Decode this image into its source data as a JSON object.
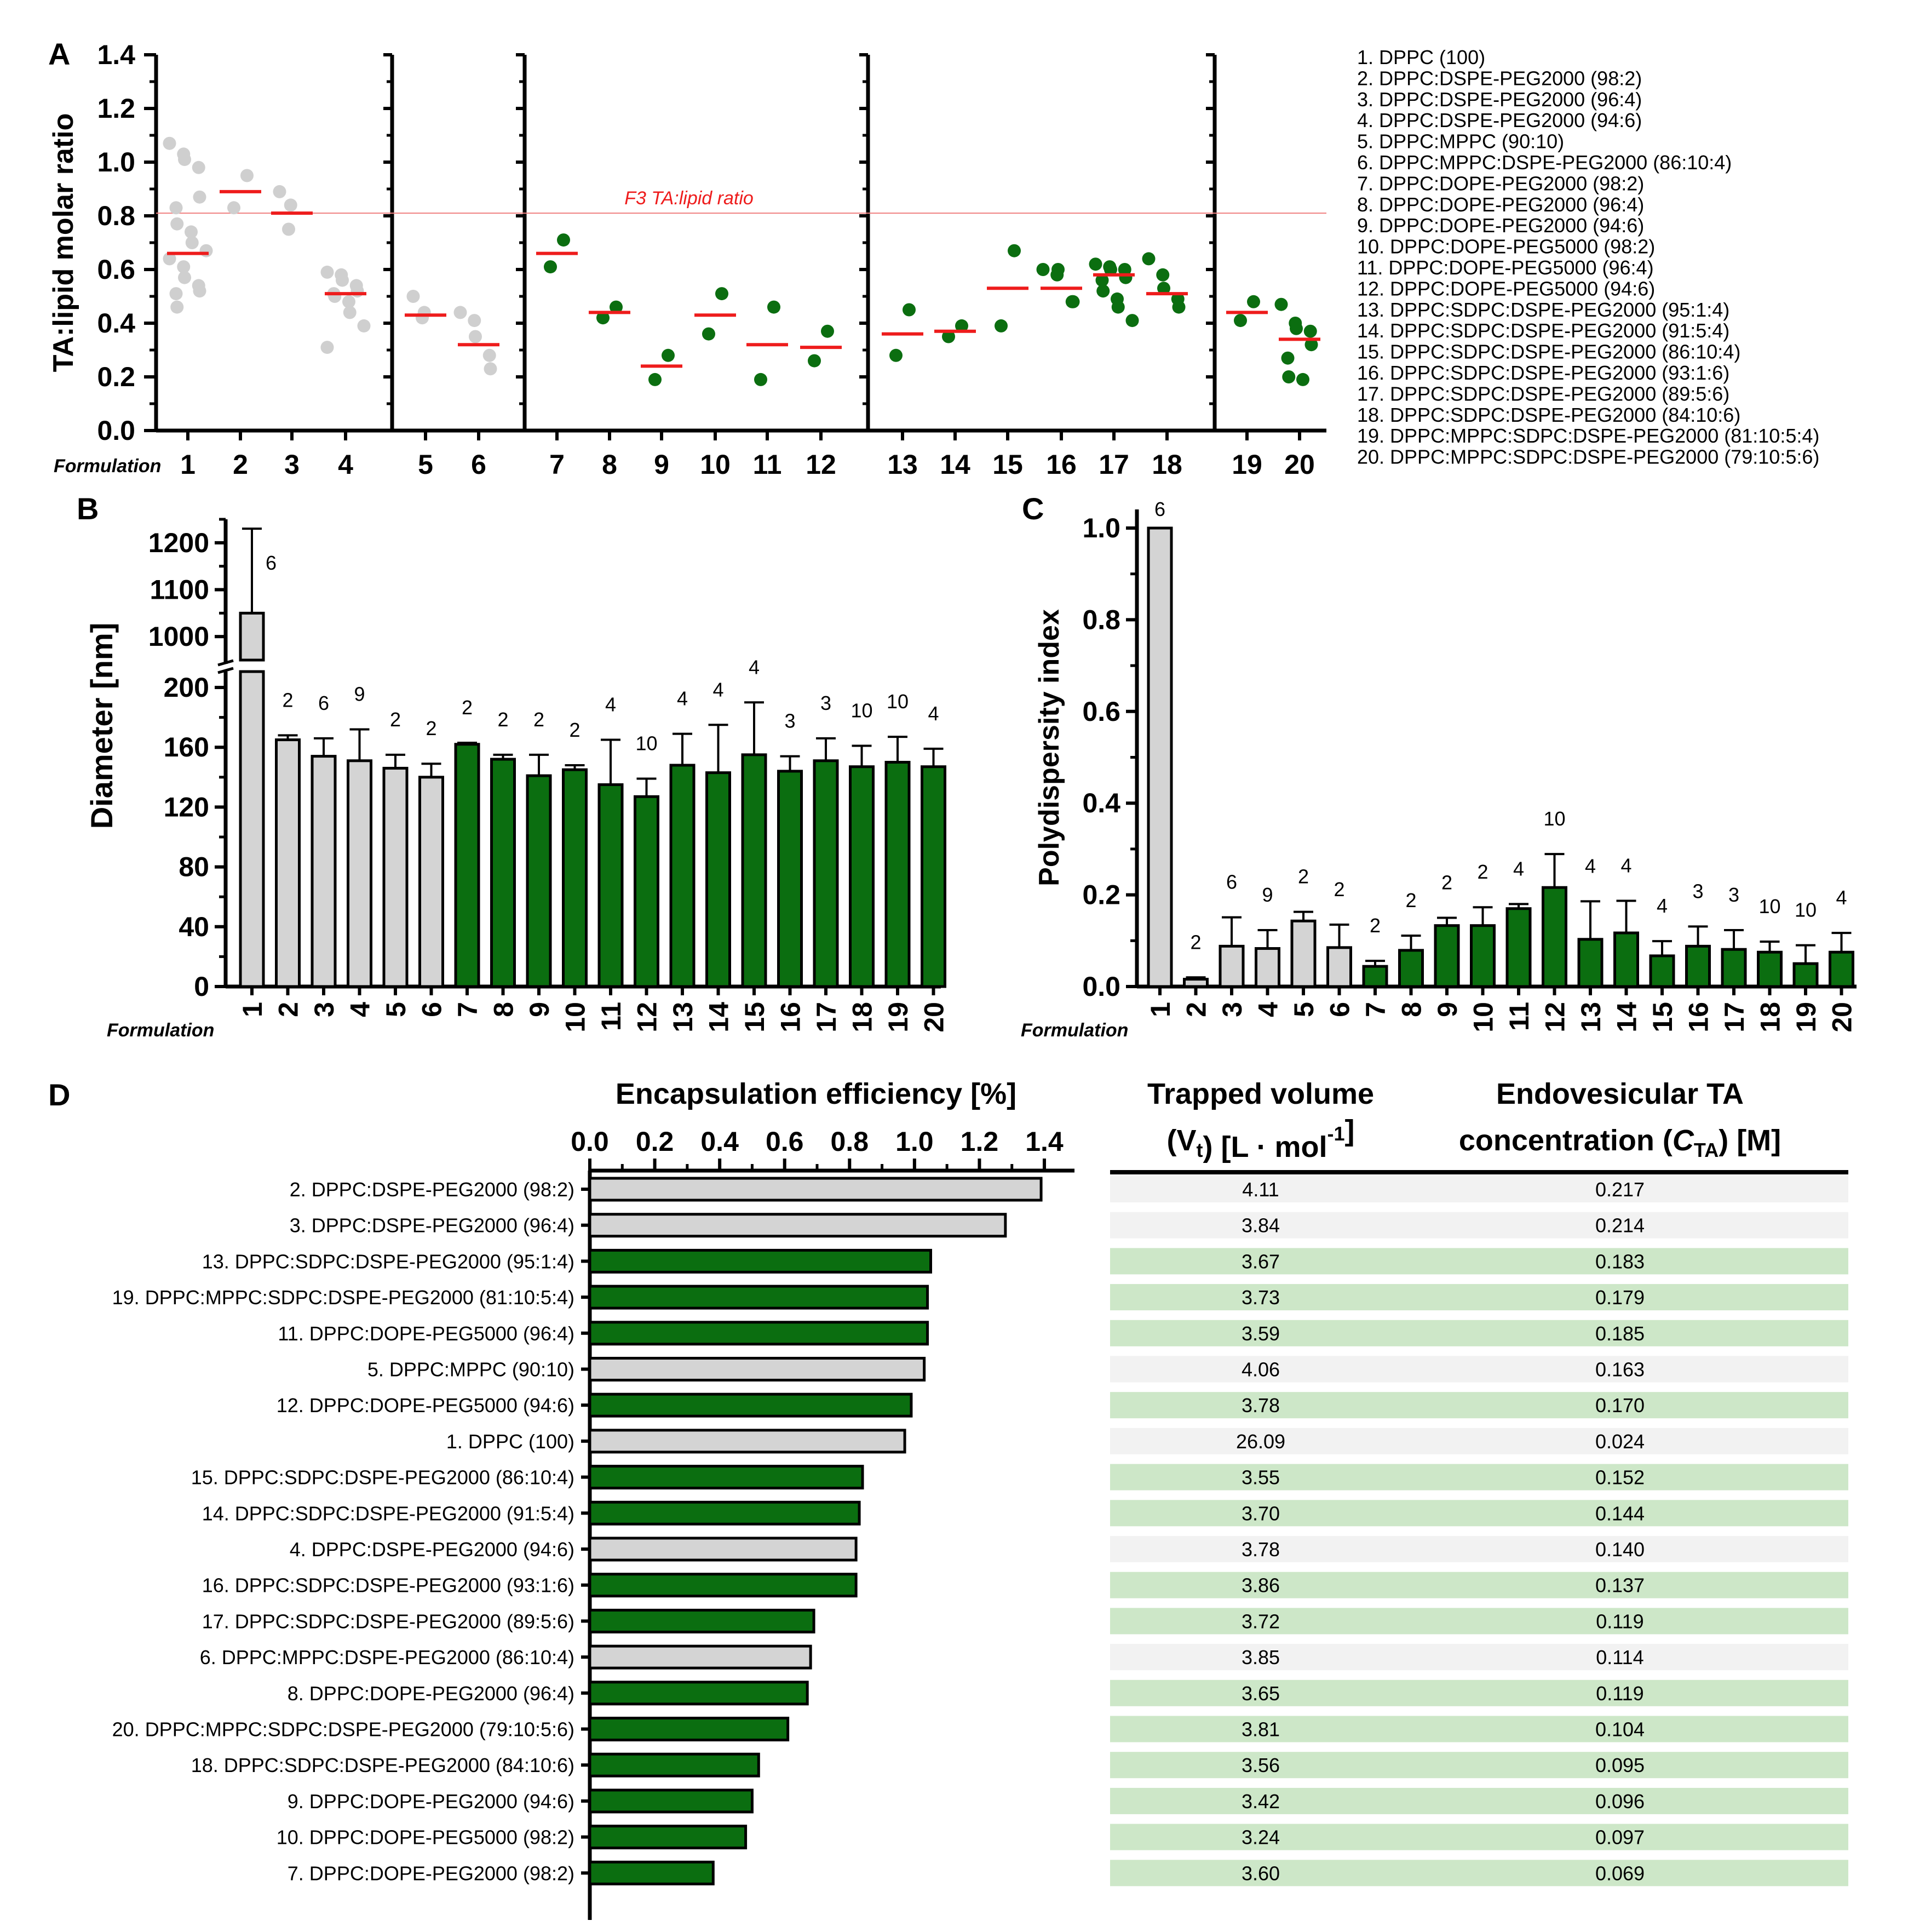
{
  "colors": {
    "gray_fill": "#d4d4d4",
    "gray_point": "#cfcfcf",
    "green": "#0b6e10",
    "red": "#ee1c1c",
    "table_green": "#cde7c8",
    "table_gray": "#f2f2f2"
  },
  "legend": [
    "1. DPPC (100)",
    "2. DPPC:DSPE-PEG2000 (98:2)",
    "3. DPPC:DSPE-PEG2000 (96:4)",
    "4. DPPC:DSPE-PEG2000 (94:6)",
    "5. DPPC:MPPC (90:10)",
    "6. DPPC:MPPC:DSPE-PEG2000 (86:10:4)",
    "7. DPPC:DOPE-PEG2000 (98:2)",
    "8. DPPC:DOPE-PEG2000 (96:4)",
    "9. DPPC:DOPE-PEG2000 (94:6)",
    "10. DPPC:DOPE-PEG5000 (98:2)",
    "11. DPPC:DOPE-PEG5000 (96:4)",
    "12. DPPC:DOPE-PEG5000 (94:6)",
    "13. DPPC:SDPC:DSPE-PEG2000 (95:1:4)",
    "14. DPPC:SDPC:DSPE-PEG2000 (91:5:4)",
    "15. DPPC:SDPC:DSPE-PEG2000 (86:10:4)",
    "16. DPPC:SDPC:DSPE-PEG2000 (93:1:6)",
    "17. DPPC:SDPC:DSPE-PEG2000 (89:5:6)",
    "18. DPPC:SDPC:DSPE-PEG2000 (84:10:6)",
    "19. DPPC:MPPC:SDPC:DSPE-PEG2000 (81:10:5:4)",
    "20. DPPC:MPPC:SDPC:DSPE-PEG2000 (79:10:5:6)"
  ],
  "chart_data": [
    {
      "panel": "A",
      "type": "scatter",
      "ylabel": "TA:lipid molar ratio",
      "xlabel": "Formulation",
      "ylim": [
        0,
        1.4
      ],
      "yticks": [
        "0.0",
        "0.2",
        "0.4",
        "0.6",
        "0.8",
        "1.0",
        "1.2",
        "1.4"
      ],
      "reference_line": {
        "value": 0.81,
        "label": "F3 TA:lipid ratio"
      },
      "groups": [
        [
          1,
          2,
          3,
          4
        ],
        [
          5,
          6
        ],
        [
          7,
          8,
          9,
          10,
          11,
          12
        ],
        [
          13,
          14,
          15,
          16,
          17,
          18
        ],
        [
          19,
          20
        ]
      ],
      "formulations": [
        {
          "label": "1",
          "color": "gray",
          "mean": 0.66,
          "points": [
            1.07,
            1.03,
            1.01,
            0.98,
            0.87,
            0.83,
            0.77,
            0.74,
            0.7,
            0.67,
            0.64,
            0.61,
            0.57,
            0.54,
            0.52,
            0.51,
            0.46
          ]
        },
        {
          "label": "2",
          "color": "gray",
          "mean": 0.89,
          "points": [
            0.95,
            0.83
          ]
        },
        {
          "label": "3",
          "color": "gray",
          "mean": 0.81,
          "points": [
            0.89,
            0.84,
            0.75
          ]
        },
        {
          "label": "4",
          "color": "gray",
          "mean": 0.51,
          "points": [
            0.59,
            0.58,
            0.56,
            0.54,
            0.52,
            0.51,
            0.5,
            0.48,
            0.44,
            0.39,
            0.31
          ]
        },
        {
          "label": "5",
          "color": "gray",
          "mean": 0.43,
          "points": [
            0.5,
            0.44,
            0.42
          ]
        },
        {
          "label": "6",
          "color": "gray",
          "mean": 0.32,
          "points": [
            0.44,
            0.41,
            0.35,
            0.28,
            0.23
          ]
        },
        {
          "label": "7",
          "color": "green",
          "mean": 0.66,
          "points": [
            0.71,
            0.61
          ]
        },
        {
          "label": "8",
          "color": "green",
          "mean": 0.44,
          "points": [
            0.46,
            0.42
          ]
        },
        {
          "label": "9",
          "color": "green",
          "mean": 0.24,
          "points": [
            0.28,
            0.19
          ]
        },
        {
          "label": "10",
          "color": "green",
          "mean": 0.43,
          "points": [
            0.51,
            0.36
          ]
        },
        {
          "label": "11",
          "color": "green",
          "mean": 0.32,
          "points": [
            0.46,
            0.19
          ]
        },
        {
          "label": "12",
          "color": "green",
          "mean": 0.31,
          "points": [
            0.37,
            0.26
          ]
        },
        {
          "label": "13",
          "color": "green",
          "mean": 0.36,
          "points": [
            0.45,
            0.28
          ]
        },
        {
          "label": "14",
          "color": "green",
          "mean": 0.37,
          "points": [
            0.39,
            0.35
          ]
        },
        {
          "label": "15",
          "color": "green",
          "mean": 0.53,
          "points": [
            0.67,
            0.39
          ]
        },
        {
          "label": "16",
          "color": "green",
          "mean": 0.53,
          "points": [
            0.6,
            0.58,
            0.6,
            0.48,
            0.48
          ]
        },
        {
          "label": "17",
          "color": "green",
          "mean": 0.58,
          "points": [
            0.62,
            0.61,
            0.6,
            0.6,
            0.57,
            0.56,
            0.52,
            0.49,
            0.46,
            0.41
          ]
        },
        {
          "label": "18",
          "color": "green",
          "mean": 0.51,
          "points": [
            0.64,
            0.58,
            0.53,
            0.49,
            0.46
          ]
        },
        {
          "label": "19",
          "color": "green",
          "mean": 0.44,
          "points": [
            0.48,
            0.41
          ]
        },
        {
          "label": "20",
          "color": "green",
          "mean": 0.34,
          "points": [
            0.47,
            0.4,
            0.38,
            0.37,
            0.32,
            0.27,
            0.2,
            0.19
          ]
        }
      ]
    },
    {
      "panel": "B",
      "type": "bar",
      "ylabel": "Diameter [nm]",
      "xlabel": "Formulation",
      "ylim_lower": [
        0,
        200
      ],
      "ylim_upper": [
        950,
        1250
      ],
      "yticks_lower": [
        "0",
        "40",
        "80",
        "120",
        "160",
        "200"
      ],
      "yticks_upper": [
        "1000",
        "1100",
        "1200"
      ],
      "categories": [
        "1",
        "2",
        "3",
        "4",
        "5",
        "6",
        "7",
        "8",
        "9",
        "10",
        "11",
        "12",
        "13",
        "14",
        "15",
        "16",
        "17",
        "18",
        "19",
        "20"
      ],
      "values": [
        1050,
        165,
        154,
        151,
        146,
        140,
        162,
        152,
        141,
        145,
        135,
        127,
        148,
        143,
        155,
        144,
        151,
        147,
        150,
        147
      ],
      "errors": [
        180,
        3,
        12,
        21,
        9,
        9,
        1,
        3,
        14,
        3,
        30,
        12,
        21,
        32,
        35,
        10,
        15,
        14,
        17,
        12
      ],
      "n_labels": [
        "6",
        "2",
        "6",
        "9",
        "2",
        "2",
        "2",
        "2",
        "2",
        "2",
        "4",
        "10",
        "4",
        "4",
        "4",
        "3",
        "3",
        "10",
        "10",
        "4"
      ],
      "colors": [
        "gray",
        "gray",
        "gray",
        "gray",
        "gray",
        "gray",
        "green",
        "green",
        "green",
        "green",
        "green",
        "green",
        "green",
        "green",
        "green",
        "green",
        "green",
        "green",
        "green",
        "green"
      ]
    },
    {
      "panel": "C",
      "type": "bar",
      "ylabel": "Polydispersity index",
      "xlabel": "Formulation",
      "ylim": [
        0,
        1.05
      ],
      "yticks": [
        "0.0",
        "0.2",
        "0.4",
        "0.6",
        "0.8",
        "1.0"
      ],
      "categories": [
        "1",
        "2",
        "3",
        "4",
        "5",
        "6",
        "7",
        "8",
        "9",
        "10",
        "11",
        "12",
        "13",
        "14",
        "15",
        "16",
        "17",
        "18",
        "19",
        "20"
      ],
      "values": [
        1.0,
        0.016,
        0.088,
        0.083,
        0.143,
        0.085,
        0.044,
        0.079,
        0.133,
        0.133,
        0.17,
        0.216,
        0.103,
        0.117,
        0.067,
        0.088,
        0.081,
        0.075,
        0.05,
        0.075
      ],
      "errors": [
        0,
        0.004,
        0.063,
        0.04,
        0.02,
        0.05,
        0.012,
        0.032,
        0.017,
        0.04,
        0.01,
        0.073,
        0.083,
        0.07,
        0.032,
        0.043,
        0.042,
        0.023,
        0.04,
        0.042
      ],
      "n_labels": [
        "6",
        "2",
        "6",
        "9",
        "2",
        "2",
        "2",
        "2",
        "2",
        "2",
        "4",
        "10",
        "4",
        "4",
        "4",
        "3",
        "3",
        "10",
        "10",
        "4"
      ],
      "colors": [
        "gray",
        "gray",
        "gray",
        "gray",
        "gray",
        "gray",
        "green",
        "green",
        "green",
        "green",
        "green",
        "green",
        "green",
        "green",
        "green",
        "green",
        "green",
        "green",
        "green",
        "green"
      ]
    },
    {
      "panel": "D",
      "type": "bar",
      "orientation": "horizontal",
      "title": "Encapsulation efficiency [%]",
      "xlim": [
        0,
        1.4
      ],
      "xticks": [
        "0.0",
        "0.2",
        "0.4",
        "0.6",
        "0.8",
        "1.0",
        "1.2",
        "1.4"
      ],
      "categories": [
        "2. DPPC:DSPE-PEG2000 (98:2)",
        "3. DPPC:DSPE-PEG2000 (96:4)",
        "13. DPPC:SDPC:DSPE-PEG2000 (95:1:4)",
        "19. DPPC:MPPC:SDPC:DSPE-PEG2000 (81:10:5:4)",
        "11. DPPC:DOPE-PEG5000 (96:4)",
        "5. DPPC:MPPC (90:10)",
        "12. DPPC:DOPE-PEG5000 (94:6)",
        "1. DPPC (100)",
        "15. DPPC:SDPC:DSPE-PEG2000 (86:10:4)",
        "14. DPPC:SDPC:DSPE-PEG2000 (91:5:4)",
        "4. DPPC:DSPE-PEG2000 (94:6)",
        "16. DPPC:SDPC:DSPE-PEG2000 (93:1:6)",
        "17. DPPC:SDPC:DSPE-PEG2000 (89:5:6)",
        "6. DPPC:MPPC:DSPE-PEG2000 (86:10:4)",
        "8. DPPC:DOPE-PEG2000 (96:4)",
        "20. DPPC:MPPC:SDPC:DSPE-PEG2000 (79:10:5:6)",
        "18. DPPC:SDPC:DSPE-PEG2000 (84:10:6)",
        "9. DPPC:DOPE-PEG2000 (94:6)",
        "10. DPPC:DOPE-PEG5000 (98:2)",
        "7. DPPC:DOPE-PEG2000 (98:2)"
      ],
      "values": [
        1.39,
        1.28,
        1.05,
        1.04,
        1.04,
        1.03,
        0.99,
        0.97,
        0.84,
        0.83,
        0.82,
        0.82,
        0.69,
        0.68,
        0.67,
        0.61,
        0.52,
        0.5,
        0.48,
        0.38
      ],
      "colors": [
        "gray",
        "gray",
        "green",
        "green",
        "green",
        "gray",
        "green",
        "gray",
        "green",
        "green",
        "gray",
        "green",
        "green",
        "gray",
        "green",
        "green",
        "green",
        "green",
        "green",
        "green"
      ]
    },
    {
      "panel": "D-table",
      "type": "table",
      "columns": [
        {
          "line1": "Trapped volume",
          "line2": "(V",
          "sub": "t",
          "line2_rest": ") [L · mol",
          "sup": "-1",
          "line2_end": "]"
        },
        {
          "line1": "Endovesicular TA",
          "line2": "concentration (",
          "ital": "C",
          "sub": "TA",
          "line2_end": ") [M]"
        }
      ],
      "rows": [
        {
          "vt": "4.11",
          "cta": "0.217",
          "color": "gray"
        },
        {
          "vt": "3.84",
          "cta": "0.214",
          "color": "gray"
        },
        {
          "vt": "3.67",
          "cta": "0.183",
          "color": "green"
        },
        {
          "vt": "3.73",
          "cta": "0.179",
          "color": "green"
        },
        {
          "vt": "3.59",
          "cta": "0.185",
          "color": "green"
        },
        {
          "vt": "4.06",
          "cta": "0.163",
          "color": "gray"
        },
        {
          "vt": "3.78",
          "cta": "0.170",
          "color": "green"
        },
        {
          "vt": "26.09",
          "cta": "0.024",
          "color": "gray"
        },
        {
          "vt": "3.55",
          "cta": "0.152",
          "color": "green"
        },
        {
          "vt": "3.70",
          "cta": "0.144",
          "color": "green"
        },
        {
          "vt": "3.78",
          "cta": "0.140",
          "color": "gray"
        },
        {
          "vt": "3.86",
          "cta": "0.137",
          "color": "green"
        },
        {
          "vt": "3.72",
          "cta": "0.119",
          "color": "green"
        },
        {
          "vt": "3.85",
          "cta": "0.114",
          "color": "gray"
        },
        {
          "vt": "3.65",
          "cta": "0.119",
          "color": "green"
        },
        {
          "vt": "3.81",
          "cta": "0.104",
          "color": "green"
        },
        {
          "vt": "3.56",
          "cta": "0.095",
          "color": "green"
        },
        {
          "vt": "3.42",
          "cta": "0.096",
          "color": "green"
        },
        {
          "vt": "3.24",
          "cta": "0.097",
          "color": "green"
        },
        {
          "vt": "3.60",
          "cta": "0.069",
          "color": "green"
        }
      ]
    }
  ],
  "panel_labels": [
    "A",
    "B",
    "C",
    "D"
  ]
}
